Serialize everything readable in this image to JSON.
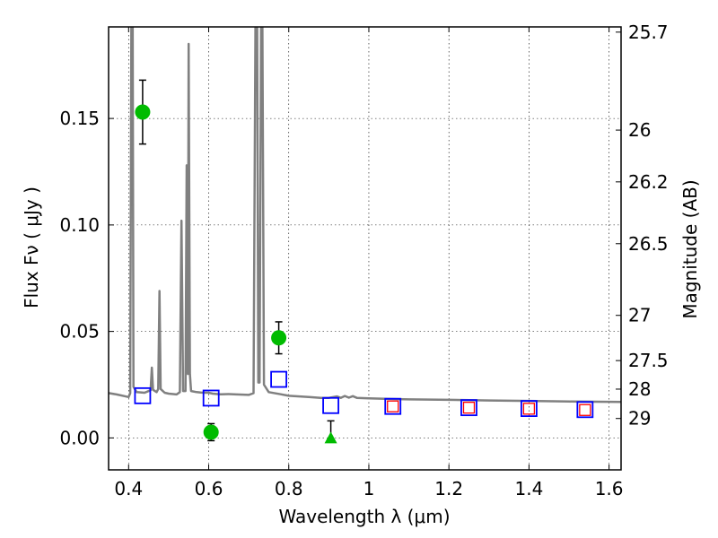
{
  "chart_data": {
    "type": "scatter",
    "xlabel": "Wavelength  λ (μm)",
    "ylabel": "Flux  Fν  ( μJy )",
    "ylabel_right": "Magnitude (AB)",
    "xlim": [
      0.35,
      1.63
    ],
    "ylim": [
      -0.015,
      0.193
    ],
    "grid": true,
    "x_ticks": [
      {
        "value": 0.4,
        "label": "0.4"
      },
      {
        "value": 0.6,
        "label": "0.6"
      },
      {
        "value": 0.8,
        "label": "0.8"
      },
      {
        "value": 1.0,
        "label": "1"
      },
      {
        "value": 1.2,
        "label": "1.2"
      },
      {
        "value": 1.4,
        "label": "1.4"
      },
      {
        "value": 1.6,
        "label": "1.6"
      }
    ],
    "y_ticks": [
      {
        "value": 0.0,
        "label": "0.00"
      },
      {
        "value": 0.05,
        "label": "0.05"
      },
      {
        "value": 0.1,
        "label": "0.10"
      },
      {
        "value": 0.15,
        "label": "0.15"
      }
    ],
    "y_right_ticks": [
      {
        "mag": 25.7,
        "label": "25.7"
      },
      {
        "mag": 26.0,
        "label": "26"
      },
      {
        "mag": 26.2,
        "label": "26.2"
      },
      {
        "mag": 26.5,
        "label": "26.5"
      },
      {
        "mag": 27.0,
        "label": "27"
      },
      {
        "mag": 27.5,
        "label": "27.5"
      },
      {
        "mag": 28.0,
        "label": "28"
      },
      {
        "mag": 29.0,
        "label": "29"
      }
    ],
    "series": [
      {
        "kind": "model spectrum",
        "style": "line",
        "color": "#808080",
        "points": [
          [
            0.35,
            0.0211
          ],
          [
            0.37,
            0.0204
          ],
          [
            0.39,
            0.0196
          ],
          [
            0.4,
            0.0192
          ],
          [
            0.404,
            0.021
          ],
          [
            0.407,
            0.2
          ],
          [
            0.41,
            0.2
          ],
          [
            0.412,
            0.024
          ],
          [
            0.42,
            0.0215
          ],
          [
            0.44,
            0.0212
          ],
          [
            0.455,
            0.0224
          ],
          [
            0.458,
            0.033
          ],
          [
            0.461,
            0.0226
          ],
          [
            0.47,
            0.0215
          ],
          [
            0.474,
            0.023
          ],
          [
            0.477,
            0.069
          ],
          [
            0.48,
            0.023
          ],
          [
            0.49,
            0.0212
          ],
          [
            0.5,
            0.0208
          ],
          [
            0.52,
            0.0204
          ],
          [
            0.528,
            0.0215
          ],
          [
            0.532,
            0.102
          ],
          [
            0.536,
            0.022
          ],
          [
            0.542,
            0.022
          ],
          [
            0.545,
            0.128
          ],
          [
            0.548,
            0.03
          ],
          [
            0.55,
            0.185
          ],
          [
            0.553,
            0.03
          ],
          [
            0.556,
            0.022
          ],
          [
            0.57,
            0.0215
          ],
          [
            0.58,
            0.0213
          ],
          [
            0.59,
            0.0212
          ],
          [
            0.6,
            0.0212
          ],
          [
            0.61,
            0.0208
          ],
          [
            0.63,
            0.0205
          ],
          [
            0.65,
            0.0206
          ],
          [
            0.67,
            0.0204
          ],
          [
            0.7,
            0.0202
          ],
          [
            0.712,
            0.021
          ],
          [
            0.717,
            0.2
          ],
          [
            0.721,
            0.2
          ],
          [
            0.724,
            0.026
          ],
          [
            0.727,
            0.026
          ],
          [
            0.731,
            0.2
          ],
          [
            0.734,
            0.2
          ],
          [
            0.738,
            0.025
          ],
          [
            0.75,
            0.0215
          ],
          [
            0.78,
            0.0205
          ],
          [
            0.8,
            0.0198
          ],
          [
            0.85,
            0.0192
          ],
          [
            0.88,
            0.0188
          ],
          [
            0.9,
            0.0188
          ],
          [
            0.92,
            0.0195
          ],
          [
            0.93,
            0.0188
          ],
          [
            0.94,
            0.0197
          ],
          [
            0.95,
            0.0189
          ],
          [
            0.96,
            0.0196
          ],
          [
            0.97,
            0.0188
          ],
          [
            1.0,
            0.0186
          ],
          [
            1.05,
            0.0183
          ],
          [
            1.1,
            0.0181
          ],
          [
            1.2,
            0.0179
          ],
          [
            1.3,
            0.0176
          ],
          [
            1.4,
            0.0174
          ],
          [
            1.5,
            0.0171
          ],
          [
            1.63,
            0.0169
          ]
        ]
      },
      {
        "kind": "measured flux",
        "style": "circle",
        "color": "#00bb00",
        "points": [
          {
            "x": 0.435,
            "y": 0.153,
            "err": 0.015
          },
          {
            "x": 0.606,
            "y": 0.0027,
            "err": 0.004
          },
          {
            "x": 0.775,
            "y": 0.047,
            "err": 0.0075
          }
        ]
      },
      {
        "kind": "upper limit",
        "style": "triangle",
        "color": "#00bb00",
        "points": [
          {
            "x": 0.905,
            "y": 0.0,
            "err_up": 0.008
          }
        ]
      },
      {
        "kind": "model photometry (blue)",
        "style": "square-open",
        "color": "#0000ff",
        "points": [
          {
            "x": 0.435,
            "y": 0.0198
          },
          {
            "x": 0.606,
            "y": 0.0187
          },
          {
            "x": 0.775,
            "y": 0.0275
          },
          {
            "x": 0.905,
            "y": 0.0152
          },
          {
            "x": 1.06,
            "y": 0.0148
          },
          {
            "x": 1.25,
            "y": 0.0142
          },
          {
            "x": 1.4,
            "y": 0.0138
          },
          {
            "x": 1.54,
            "y": 0.0133
          }
        ]
      },
      {
        "kind": "model photometry (red)",
        "style": "square-open-small",
        "color": "#ff0000",
        "points": [
          {
            "x": 1.06,
            "y": 0.0148
          },
          {
            "x": 1.25,
            "y": 0.0142
          },
          {
            "x": 1.4,
            "y": 0.0137
          },
          {
            "x": 1.54,
            "y": 0.0131
          }
        ]
      }
    ]
  }
}
